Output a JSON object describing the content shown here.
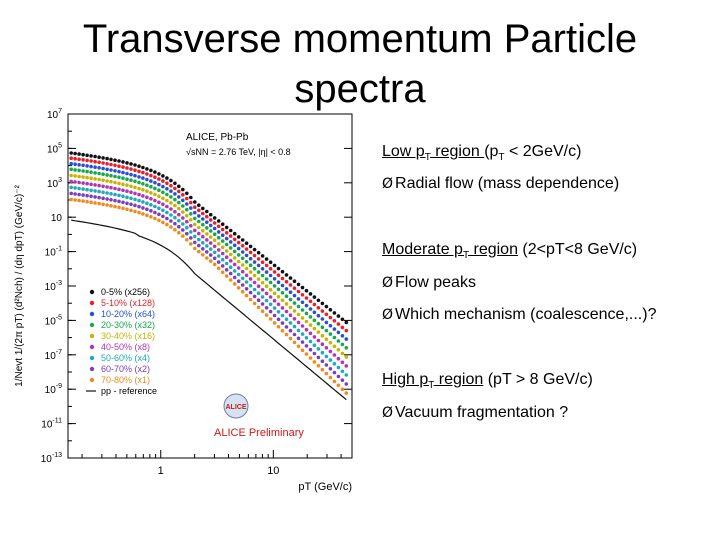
{
  "slide": {
    "title_line1": "Transverse momentum Particle",
    "title_line2": "spectra"
  },
  "notes": {
    "low_region_label": "Low p",
    "low_region_sub": "T",
    "low_region_after": " region ",
    "low_region_cond_pre": " (p",
    "low_region_cond_sub": "T",
    "low_region_cond_post": " < 2GeV/c)",
    "low_bullet": "Radial flow (mass dependence)",
    "mod_region_label": "Moderate p",
    "mod_region_sub": "T",
    "mod_region_after": " region",
    "mod_region_cond": " (2<pT<8 GeV/c)",
    "mod_bullet1": "Flow peaks",
    "mod_bullet2": "Which mechanism (coalescence,...)?",
    "high_region_label": "High p",
    "high_region_sub": "T",
    "high_region_after": " region",
    "high_region_cond": " (pT > 8 GeV/c)",
    "high_bullet": "Vacuum fragmentation ?",
    "arrow_glyph": "Ø"
  },
  "chart_data": {
    "type": "scatter",
    "title": "ALICE, Pb-Pb",
    "subtitle": "√sNN = 2.76 TeV, |η| < 0.8",
    "xlabel": "pT (GeV/c)",
    "ylabel": "1/Nevt 1/(2π pT) (d²Nch) / (dη dpT) (GeV/c)⁻²",
    "xscale": "log",
    "yscale": "log",
    "xlim": [
      0.15,
      50
    ],
    "ylim": [
      1e-13,
      10000000.0
    ],
    "x_ticks": [
      "1",
      "10"
    ],
    "y_ticks": [
      "10^7",
      "10^5",
      "10^3",
      "10",
      "10^-1",
      "10^-3",
      "10^-5",
      "10^-7",
      "10^-9",
      "10^-11",
      "10^-13"
    ],
    "y_tick_exponents": [
      7,
      5,
      3,
      1,
      -1,
      -3,
      -5,
      -7,
      -9,
      -11,
      -13
    ],
    "legend_placement": "bottom-left",
    "watermark": "ALICE Preliminary",
    "logo_text": "ALICE",
    "series": [
      {
        "name": "0-5% (x256)",
        "color": "#111111",
        "offset_exp": 0.0
      },
      {
        "name": "5-10% (x128)",
        "color": "#e8202a",
        "offset_exp": -0.3
      },
      {
        "name": "10-20% (x64)",
        "color": "#2b4fd1",
        "offset_exp": -0.62
      },
      {
        "name": "20-30% (x32)",
        "color": "#18a84a",
        "offset_exp": -0.95
      },
      {
        "name": "30-40% (x16)",
        "color": "#c8b400",
        "offset_exp": -1.3
      },
      {
        "name": "40-50% (x8)",
        "color": "#b135b5",
        "offset_exp": -1.65
      },
      {
        "name": "50-60% (x4)",
        "color": "#20a9b8",
        "offset_exp": -2.0
      },
      {
        "name": "60-70% (x2)",
        "color": "#7a3fc1",
        "offset_exp": -2.35
      },
      {
        "name": "70-80% (x1)",
        "color": "#ef8a1e",
        "offset_exp": -2.7
      },
      {
        "name": "pp - reference",
        "color": "#111111",
        "offset_exp": -3.9,
        "style": "line"
      }
    ]
  }
}
